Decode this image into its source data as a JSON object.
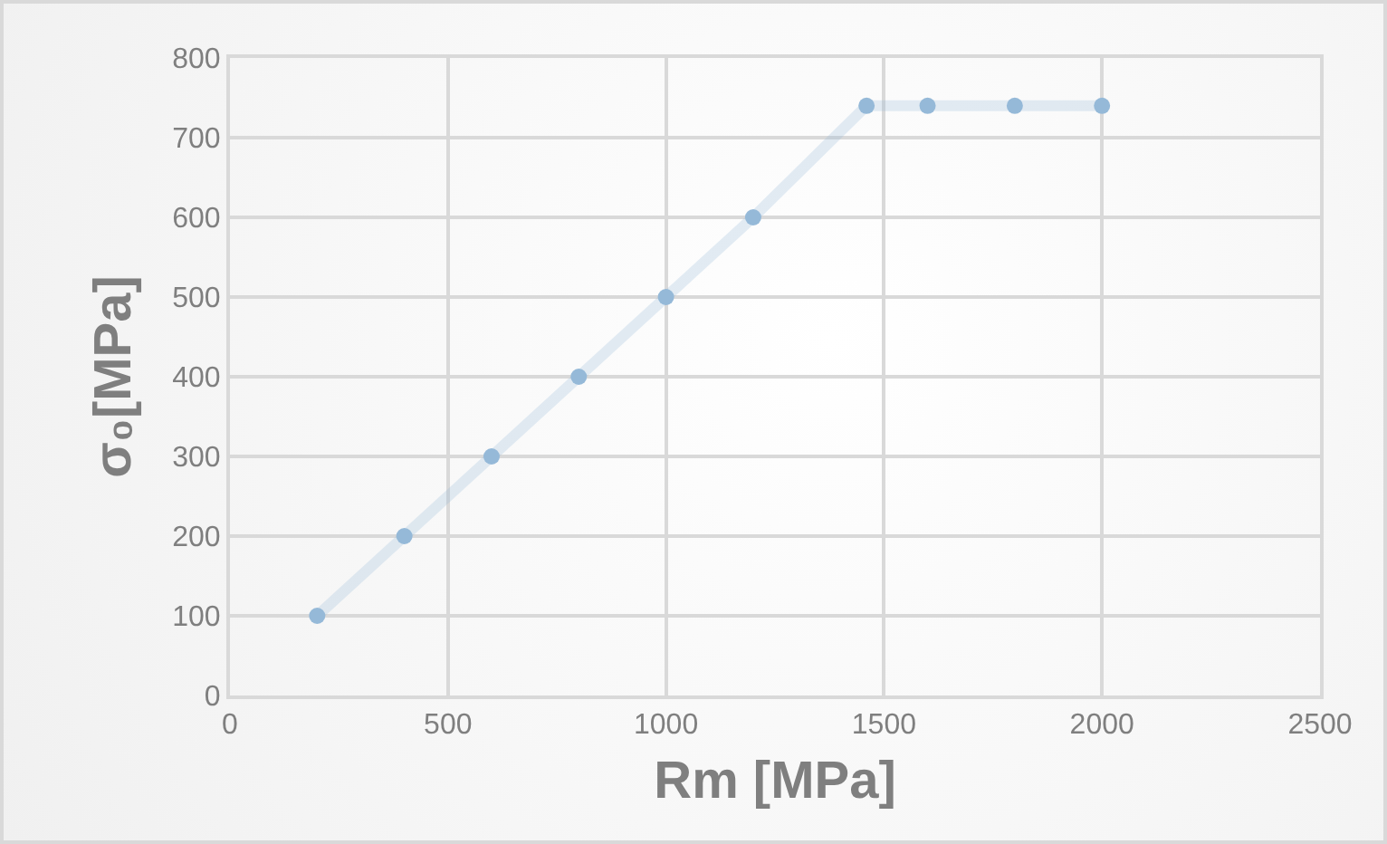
{
  "chart_data": {
    "type": "line",
    "xlabel": "Rm [MPa]",
    "ylabel": "σ₀[MPa]",
    "x": [
      200,
      400,
      600,
      800,
      1000,
      1200,
      1460,
      1600,
      1800,
      2000
    ],
    "series": [
      {
        "color": "#95b9d8",
        "values": [
          100,
          200,
          300,
          400,
          500,
          600,
          740,
          740,
          740,
          740
        ]
      }
    ],
    "xlim": [
      0,
      2500
    ],
    "xticks": [
      0,
      500,
      1000,
      1500,
      2000,
      2500
    ],
    "ylim": [
      0,
      800
    ],
    "yticks": [
      0,
      100,
      200,
      300,
      400,
      500,
      600,
      700,
      800
    ],
    "grid": true,
    "marker": "circle",
    "line_style": "solid"
  }
}
